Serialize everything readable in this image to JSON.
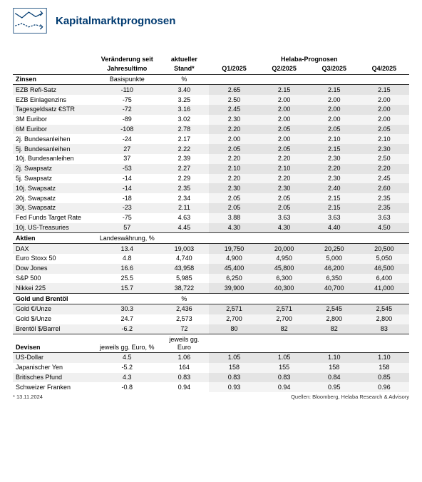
{
  "title": "Kapitalmarktprognosen",
  "header": {
    "chg_label_l1": "Veränderung seit",
    "chg_label_l2": "Jahresultimo",
    "cur_label_l1": "aktueller",
    "cur_label_l2": "Stand*",
    "forecast_group": "Helaba-Prognosen",
    "q1": "Q1/2025",
    "q2": "Q2/2025",
    "q3": "Q3/2025",
    "q4": "Q4/2025"
  },
  "sections": [
    {
      "name": "Zinsen",
      "unit": "Basispunkte",
      "unit2": "%",
      "rows": [
        {
          "label": "EZB Refi-Satz",
          "chg": "-110",
          "cur": "3.40",
          "q": [
            "2.65",
            "2.15",
            "2.15",
            "2.15"
          ]
        },
        {
          "label": "EZB Einlagenzins",
          "chg": "-75",
          "cur": "3.25",
          "q": [
            "2.50",
            "2.00",
            "2.00",
            "2.00"
          ]
        },
        {
          "label": "Tagesgeldsatz €STR",
          "chg": "-72",
          "cur": "3.16",
          "q": [
            "2.45",
            "2.00",
            "2.00",
            "2.00"
          ]
        },
        {
          "label": "3M Euribor",
          "chg": "-89",
          "cur": "3.02",
          "q": [
            "2.30",
            "2.00",
            "2.00",
            "2.00"
          ]
        },
        {
          "label": "6M Euribor",
          "chg": "-108",
          "cur": "2.78",
          "q": [
            "2.20",
            "2.05",
            "2.05",
            "2.05"
          ]
        },
        {
          "label": "2j. Bundesanleihen",
          "chg": "-24",
          "cur": "2.17",
          "q": [
            "2.00",
            "2.00",
            "2.10",
            "2.10"
          ]
        },
        {
          "label": "5j. Bundesanleihen",
          "chg": "27",
          "cur": "2.22",
          "q": [
            "2.05",
            "2.05",
            "2.15",
            "2.30"
          ]
        },
        {
          "label": "10j. Bundesanleihen",
          "chg": "37",
          "cur": "2.39",
          "q": [
            "2.20",
            "2.20",
            "2.30",
            "2.50"
          ]
        },
        {
          "label": "2j. Swapsatz",
          "chg": "-53",
          "cur": "2.27",
          "q": [
            "2.10",
            "2.10",
            "2.20",
            "2.20"
          ]
        },
        {
          "label": "5j. Swapsatz",
          "chg": "-14",
          "cur": "2.29",
          "q": [
            "2.20",
            "2.20",
            "2.30",
            "2.45"
          ]
        },
        {
          "label": "10j. Swapsatz",
          "chg": "-14",
          "cur": "2.35",
          "q": [
            "2.30",
            "2.30",
            "2.40",
            "2.60"
          ]
        },
        {
          "label": "20j. Swapsatz",
          "chg": "-18",
          "cur": "2.34",
          "q": [
            "2.05",
            "2.05",
            "2.15",
            "2.35"
          ]
        },
        {
          "label": "30j. Swapsatz",
          "chg": "-23",
          "cur": "2.11",
          "q": [
            "2.05",
            "2.05",
            "2.15",
            "2.35"
          ]
        },
        {
          "label": "Fed Funds Target Rate",
          "chg": "-75",
          "cur": "4.63",
          "q": [
            "3.88",
            "3.63",
            "3.63",
            "3.63"
          ]
        },
        {
          "label": "10j. US-Treasuries",
          "chg": "57",
          "cur": "4.45",
          "q": [
            "4.30",
            "4.30",
            "4.40",
            "4.50"
          ]
        }
      ]
    },
    {
      "name": "Aktien",
      "unit": "Landeswährung, %",
      "unit2": "",
      "rows": [
        {
          "label": "DAX",
          "chg": "13.4",
          "cur": "19,003",
          "q": [
            "19,750",
            "20,000",
            "20,250",
            "20,500"
          ]
        },
        {
          "label": "Euro Stoxx 50",
          "chg": "4.8",
          "cur": "4,740",
          "q": [
            "4,900",
            "4,950",
            "5,000",
            "5,050"
          ]
        },
        {
          "label": "Dow Jones",
          "chg": "16.6",
          "cur": "43,958",
          "q": [
            "45,400",
            "45,800",
            "46,200",
            "46,500"
          ]
        },
        {
          "label": "S&P 500",
          "chg": "25.5",
          "cur": "5,985",
          "q": [
            "6,250",
            "6,300",
            "6,350",
            "6,400"
          ]
        },
        {
          "label": "Nikkei 225",
          "chg": "15.7",
          "cur": "38,722",
          "q": [
            "39,900",
            "40,300",
            "40,700",
            "41,000"
          ]
        }
      ]
    },
    {
      "name": "Gold und Brentöl",
      "unit": "",
      "unit2": "%",
      "rows": [
        {
          "label": "Gold €/Unze",
          "chg": "30.3",
          "cur": "2,436",
          "q": [
            "2,571",
            "2,571",
            "2,545",
            "2,545"
          ]
        },
        {
          "label": "Gold $/Unze",
          "chg": "24.7",
          "cur": "2,573",
          "q": [
            "2,700",
            "2,700",
            "2,800",
            "2,800"
          ]
        },
        {
          "label": "Brentöl $/Barrel",
          "chg": "-6.2",
          "cur": "72",
          "q": [
            "80",
            "82",
            "82",
            "83"
          ]
        }
      ]
    },
    {
      "name": "Devisen",
      "unit": "jeweils gg. Euro, %",
      "unit2": "jeweils gg. Euro",
      "rows": [
        {
          "label": "US-Dollar",
          "chg": "4.5",
          "cur": "1.06",
          "q": [
            "1.05",
            "1.05",
            "1.10",
            "1.10"
          ]
        },
        {
          "label": "Japanischer Yen",
          "chg": "-5.2",
          "cur": "164",
          "q": [
            "158",
            "155",
            "158",
            "158"
          ]
        },
        {
          "label": "Britisches Pfund",
          "chg": "4.3",
          "cur": "0.83",
          "q": [
            "0.83",
            "0.83",
            "0.84",
            "0.85"
          ]
        },
        {
          "label": "Schweizer Franken",
          "chg": "-0.8",
          "cur": "0.94",
          "q": [
            "0.93",
            "0.94",
            "0.95",
            "0.96"
          ]
        }
      ]
    }
  ],
  "footer": {
    "date_note": "* 13.11.2024",
    "source_note": "Quellen: Bloomberg, Helaba Research & Advisory"
  },
  "colors": {
    "brand": "#003a70",
    "stripe": "#f0f0f0",
    "fc_bg": "#f4f4f4",
    "fc_stripe": "#e4e4e4"
  }
}
